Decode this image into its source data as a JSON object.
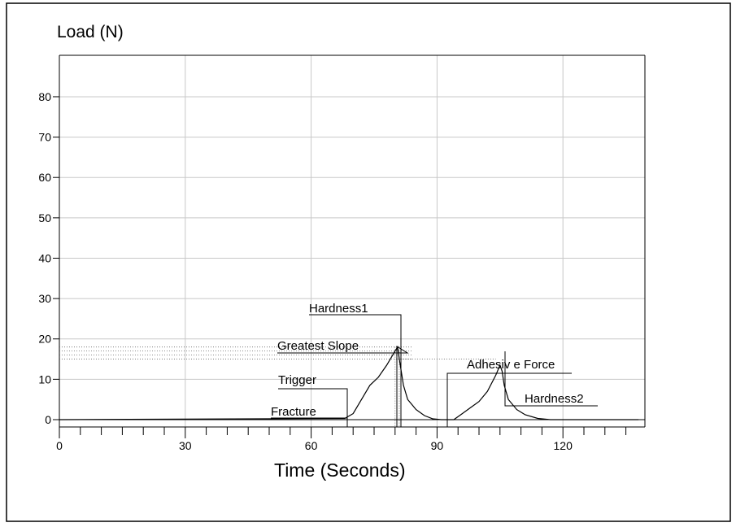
{
  "chart_data": {
    "type": "line",
    "title": "",
    "ylabel": "Load (N)",
    "xlabel": "Time (Seconds)",
    "xlim": [
      0,
      138
    ],
    "ylim": [
      -2,
      90
    ],
    "x_ticks": [
      0,
      30,
      60,
      90,
      120
    ],
    "y_ticks": [
      0,
      10,
      20,
      30,
      40,
      50,
      60,
      70,
      80
    ],
    "grid": true,
    "series": [
      {
        "points": [
          [
            0,
            0
          ],
          [
            68,
            0.3
          ],
          [
            70,
            1.5
          ],
          [
            72,
            5
          ],
          [
            74,
            8.5
          ],
          [
            76,
            10.5
          ],
          [
            78,
            13.5
          ],
          [
            80,
            17
          ],
          [
            80.6,
            18
          ],
          [
            81,
            15
          ],
          [
            82,
            8.5
          ],
          [
            83,
            5
          ],
          [
            85,
            2.5
          ],
          [
            87,
            1
          ],
          [
            89,
            0.2
          ],
          [
            91,
            0
          ],
          [
            94,
            0
          ],
          [
            96,
            1.5
          ],
          [
            98,
            3
          ],
          [
            100,
            4.5
          ],
          [
            102,
            7
          ],
          [
            104,
            11
          ],
          [
            105,
            13.5
          ],
          [
            105.5,
            12
          ],
          [
            106,
            8.5
          ],
          [
            107,
            5
          ],
          [
            109,
            2.5
          ],
          [
            111,
            1.2
          ],
          [
            114,
            0.3
          ],
          [
            117,
            0
          ],
          [
            138,
            0
          ]
        ]
      }
    ],
    "annotations": [
      {
        "label": "Fracture",
        "x": 68,
        "y": 0.3
      },
      {
        "label": "Trigger",
        "x": 68,
        "y": 7.5
      },
      {
        "label": "Hardness1",
        "x": 80.6,
        "y": 18
      },
      {
        "label": "Greatest Slope",
        "x": 80.6,
        "y": 17
      },
      {
        "label": "Adhesiv e Force",
        "x": 92,
        "y": 0
      },
      {
        "label": "Hardness2",
        "x": 105,
        "y": 13.5
      }
    ]
  }
}
